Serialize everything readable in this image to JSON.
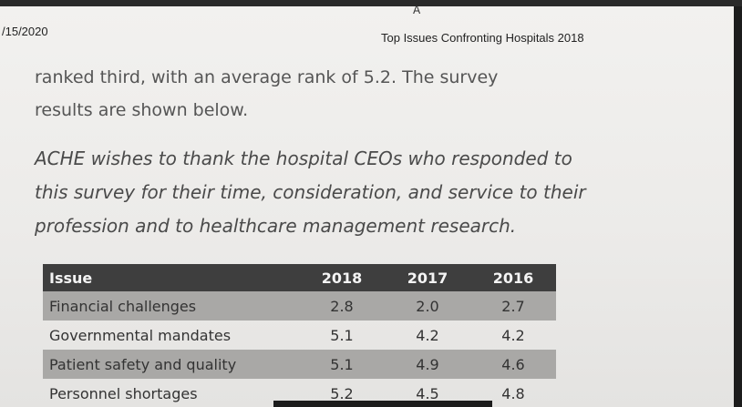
{
  "header": {
    "page_mark": "A",
    "date": "/15/2020",
    "doc_title": "Top Issues Confronting Hospitals 2018"
  },
  "body": {
    "line1": "ranked third, with an average rank of 5.2. The survey",
    "line2": "results are shown below."
  },
  "acknowledgement": {
    "line1": "ACHE wishes to thank the hospital CEOs who responded to",
    "line2": "this survey for their time, consideration, and service to their",
    "line3": "profession and to healthcare management research."
  },
  "table": {
    "headers": [
      "Issue",
      "2018",
      "2017",
      "2016"
    ],
    "rows": [
      {
        "issue": "Financial challenges",
        "y2018": "2.8",
        "y2017": "2.0",
        "y2016": "2.7"
      },
      {
        "issue": "Governmental mandates",
        "y2018": "5.1",
        "y2017": "4.2",
        "y2016": "4.2"
      },
      {
        "issue": "Patient safety and quality",
        "y2018": "5.1",
        "y2017": "4.9",
        "y2016": "4.6"
      },
      {
        "issue": "Personnel shortages",
        "y2018": "5.2",
        "y2017": "4.5",
        "y2016": "4.8"
      }
    ]
  }
}
